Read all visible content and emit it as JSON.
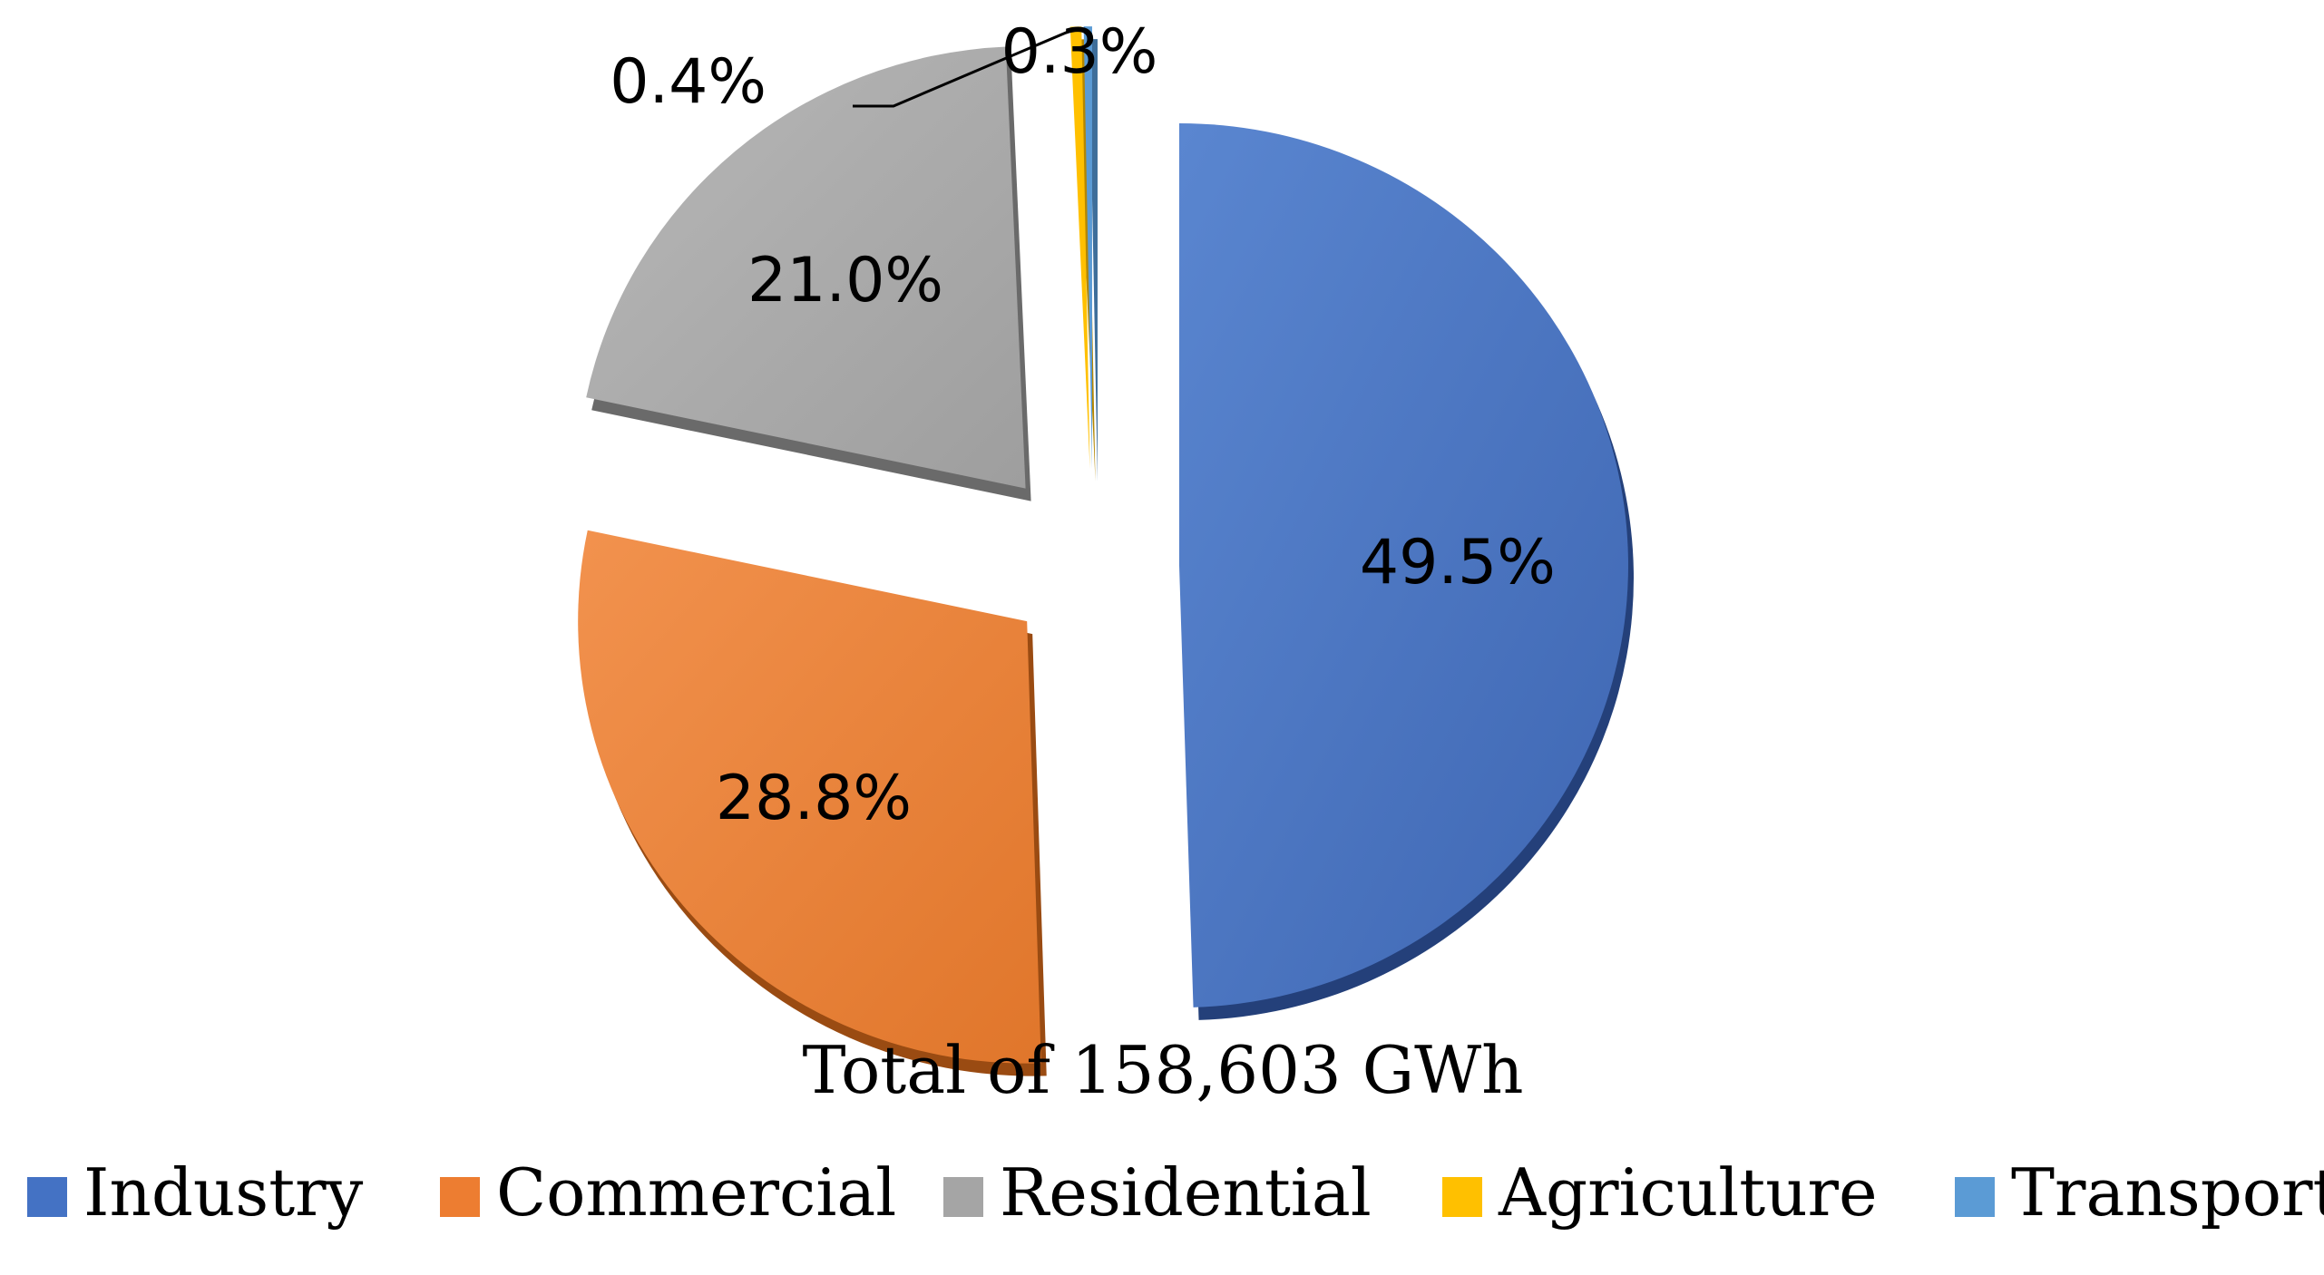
{
  "chart_data": {
    "type": "pie",
    "subtitle": "Total of 158,603 GWh",
    "series": [
      {
        "name": "Industry",
        "value": 49.5,
        "label": "49.5%",
        "color": "#4472C4"
      },
      {
        "name": "Commercial",
        "value": 28.8,
        "label": "28.8%",
        "color": "#ED7D31"
      },
      {
        "name": "Residential",
        "value": 21.0,
        "label": "21.0%",
        "color": "#A5A5A5"
      },
      {
        "name": "Agriculture",
        "value": 0.4,
        "label": "0.4%",
        "color": "#FFC000"
      },
      {
        "name": "Transport",
        "value": 0.3,
        "label": "0.3%",
        "color": "#5B9BD5"
      }
    ],
    "legend": {
      "position": "bottom"
    },
    "exploded": true
  }
}
